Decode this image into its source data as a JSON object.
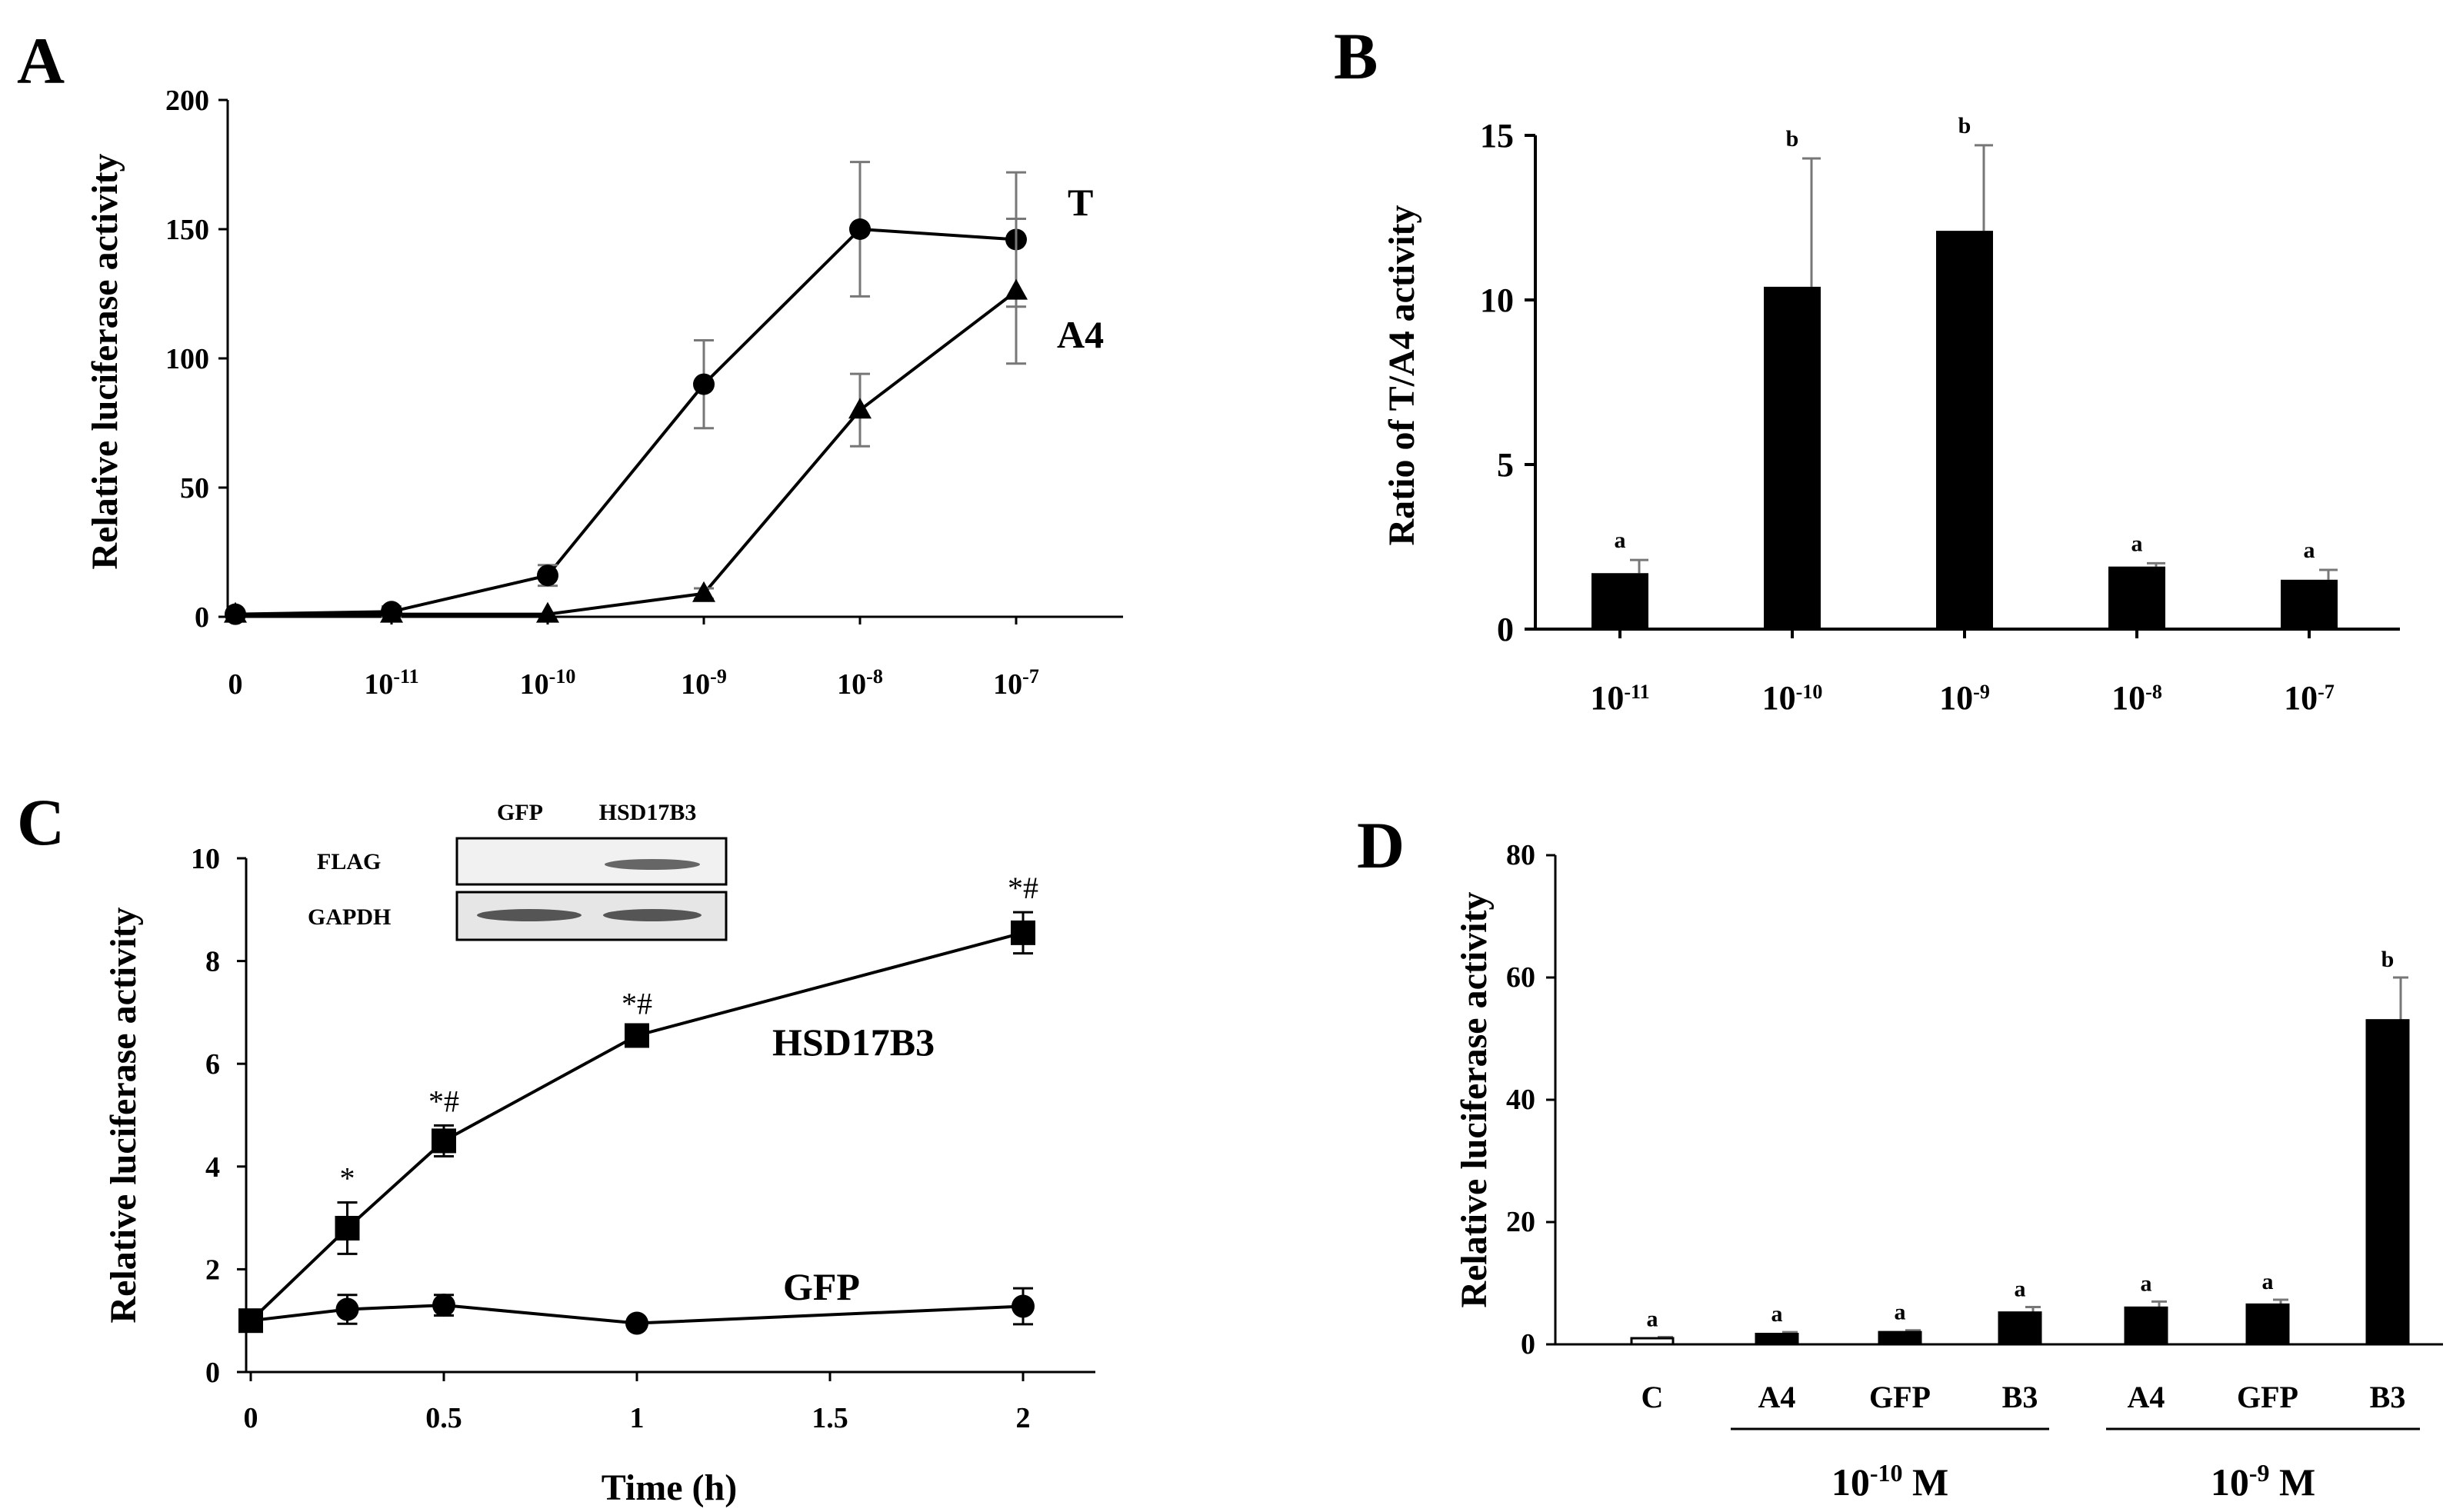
{
  "panels": {
    "A": {
      "letter": "A"
    },
    "B": {
      "letter": "B"
    },
    "C": {
      "letter": "C"
    },
    "D": {
      "letter": "D"
    }
  },
  "chart_data": [
    {
      "panel": "A",
      "type": "line",
      "ylabel": "Relative luciferase activity",
      "xlabel": "",
      "ylim": [
        0,
        200
      ],
      "yticks": [
        "0",
        "50",
        "100",
        "150",
        "200"
      ],
      "categories": [
        {
          "base": "0",
          "exp": ""
        },
        {
          "base": "10",
          "exp": "-11"
        },
        {
          "base": "10",
          "exp": "-10"
        },
        {
          "base": "10",
          "exp": "-9"
        },
        {
          "base": "10",
          "exp": "-8"
        },
        {
          "base": "10",
          "exp": "-7"
        }
      ],
      "series": [
        {
          "name": "T",
          "marker": "circle",
          "values": [
            1,
            2,
            16,
            90,
            150,
            146
          ],
          "errors": [
            0,
            2,
            4,
            17,
            26,
            26
          ]
        },
        {
          "name": "A4",
          "marker": "triangle",
          "values": [
            1,
            1,
            1,
            9,
            80,
            126
          ],
          "errors": [
            0,
            0,
            0,
            2,
            14,
            28
          ]
        }
      ]
    },
    {
      "panel": "B",
      "type": "bar",
      "ylabel": "Ratio of T/A4 activity",
      "xlabel": "",
      "ylim": [
        0,
        15
      ],
      "yticks": [
        "0",
        "5",
        "10",
        "15"
      ],
      "categories": [
        {
          "base": "10",
          "exp": "-11"
        },
        {
          "base": "10",
          "exp": "-10"
        },
        {
          "base": "10",
          "exp": "-9"
        },
        {
          "base": "10",
          "exp": "-8"
        },
        {
          "base": "10",
          "exp": "-7"
        }
      ],
      "values": [
        1.7,
        10.4,
        12.1,
        1.9,
        1.5
      ],
      "errors": [
        0.4,
        3.9,
        2.6,
        0.1,
        0.3
      ],
      "letters": [
        "a",
        "b",
        "b",
        "a",
        "a"
      ]
    },
    {
      "panel": "C",
      "type": "line",
      "ylabel": "Relative luciferase  activity",
      "xlabel": "Time  (h)",
      "xlim": [
        0,
        2.2
      ],
      "ylim": [
        0,
        10
      ],
      "yticks": [
        "0",
        "2",
        "4",
        "6",
        "8",
        "10"
      ],
      "xticks": [
        "0",
        "0.5",
        "1",
        "1.5",
        "2"
      ],
      "series": [
        {
          "name": "HSD17B3",
          "marker": "square",
          "x": [
            0,
            0.25,
            0.5,
            1,
            2
          ],
          "values": [
            1.0,
            2.8,
            4.5,
            6.55,
            8.55
          ],
          "errors": [
            0,
            0.5,
            0.3,
            0.15,
            0.4
          ],
          "annotations": [
            "",
            "*",
            "*#",
            "*#",
            "*#"
          ]
        },
        {
          "name": "GFP",
          "marker": "circle",
          "x": [
            0,
            0.25,
            0.5,
            1,
            2
          ],
          "values": [
            1.0,
            1.22,
            1.3,
            0.95,
            1.28
          ],
          "errors": [
            0,
            0.28,
            0.2,
            0,
            0.35
          ],
          "annotations": [
            "",
            "",
            "",
            "",
            ""
          ]
        }
      ],
      "inset": {
        "columns": [
          "GFP",
          "HSD17B3"
        ],
        "rows": [
          "FLAG",
          "GAPDH"
        ]
      }
    },
    {
      "panel": "D",
      "type": "bar",
      "ylabel": "Relative luciferase activity",
      "xlabel": "",
      "ylim": [
        0,
        80
      ],
      "yticks": [
        "0",
        "20",
        "40",
        "60",
        "80"
      ],
      "categories": [
        "C",
        "A4",
        "GFP",
        "B3",
        "A4",
        "GFP",
        "B3"
      ],
      "values": [
        1.0,
        1.7,
        2.0,
        5.2,
        6.0,
        6.5,
        53.0
      ],
      "errors": [
        0.2,
        0.3,
        0.3,
        0.9,
        1.0,
        0.8,
        7.0
      ],
      "letters": [
        "a",
        "a",
        "a",
        "a",
        "a",
        "a",
        "b"
      ],
      "fills": [
        "#ffffff",
        "#000000",
        "#000000",
        "#000000",
        "#000000",
        "#000000",
        "#000000"
      ],
      "groups": [
        {
          "base": "10",
          "exp": "-10",
          "unit": " M"
        },
        {
          "base": "10",
          "exp": "-9",
          "unit": " M"
        }
      ]
    }
  ]
}
